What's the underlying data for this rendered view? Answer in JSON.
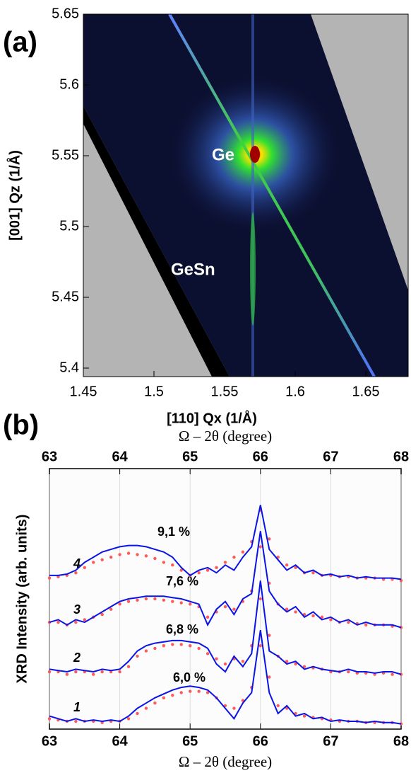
{
  "chart_data": [
    {
      "type": "map",
      "label": "(a)",
      "xlabel": "[110] Qx (1/Å)",
      "ylabel": "[001] Qz (1/Å)",
      "xlim": [
        1.45,
        1.68
      ],
      "ylim": [
        5.394,
        5.65
      ],
      "xticks": [
        1.45,
        1.5,
        1.55,
        1.6,
        1.65
      ],
      "yticks": [
        5.4,
        5.45,
        5.5,
        5.55,
        5.6,
        5.65
      ],
      "annotations": [
        "Ge",
        "GeSn"
      ]
    },
    {
      "type": "line",
      "label": "(b)",
      "xlabel": "Ω – 2θ (degree)",
      "x2label": "Ω – 2θ (degree)",
      "ylabel": "XRD Intensity (arb. units)",
      "xlim": [
        63,
        68
      ],
      "ylim": [
        0,
        10
      ],
      "xticks": [
        63,
        64,
        65,
        66,
        67,
        68
      ],
      "grid": true,
      "x": [
        63,
        63.125,
        63.25,
        63.375,
        63.5,
        63.625,
        63.75,
        63.875,
        64,
        64.125,
        64.25,
        64.375,
        64.5,
        64.625,
        64.75,
        64.875,
        65,
        65.125,
        65.25,
        65.375,
        65.5,
        65.625,
        65.75,
        65.875,
        66,
        66.125,
        66.25,
        66.375,
        66.5,
        66.625,
        66.75,
        66.875,
        67,
        67.125,
        67.25,
        67.375,
        67.5,
        67.625,
        67.75,
        67.875,
        68
      ],
      "series": [
        {
          "name": "1",
          "annotation": "6,0 %",
          "color": "#0a14e6",
          "measured_color": "#ff5a5a",
          "values": [
            0.5,
            0.4,
            0.3,
            0.4,
            0.3,
            0.35,
            0.3,
            0.35,
            0.3,
            0.5,
            0.8,
            1.0,
            1.2,
            1.35,
            1.5,
            1.6,
            1.65,
            1.6,
            1.5,
            1.2,
            0.8,
            0.4,
            1.0,
            1.4,
            3.8,
            1.4,
            0.6,
            0.9,
            0.5,
            0.6,
            0.4,
            0.45,
            0.3,
            0.35,
            0.3,
            0.3,
            0.25,
            0.3,
            0.25,
            0.25,
            0.2
          ],
          "measured": [
            0.4,
            0.35,
            0.3,
            0.3,
            0.3,
            0.3,
            0.25,
            0.3,
            0.3,
            0.4,
            0.6,
            0.8,
            1.0,
            1.2,
            1.3,
            1.4,
            1.45,
            1.45,
            1.4,
            1.2,
            0.9,
            0.8,
            1.1,
            1.6,
            3.2,
            2.0,
            0.9,
            0.8,
            0.6,
            0.5,
            0.45,
            0.4,
            0.35,
            0.3,
            0.3,
            0.3,
            0.25,
            0.25,
            0.25,
            0.25,
            0.2
          ]
        },
        {
          "name": "2",
          "annotation": "6,8 %",
          "color": "#0a14e6",
          "measured_color": "#ff5a5a",
          "values": [
            2.3,
            2.25,
            2.2,
            2.3,
            2.25,
            2.2,
            2.3,
            2.25,
            2.3,
            2.6,
            3.0,
            3.2,
            3.3,
            3.35,
            3.4,
            3.4,
            3.35,
            3.3,
            3.1,
            2.5,
            2.2,
            2.8,
            2.4,
            2.9,
            5.7,
            3.0,
            2.8,
            2.5,
            2.6,
            2.3,
            2.4,
            2.3,
            2.25,
            2.2,
            2.3,
            2.2,
            2.2,
            2.15,
            2.2,
            2.2,
            2.1
          ],
          "measured": [
            2.2,
            2.2,
            2.1,
            2.2,
            2.2,
            2.1,
            2.2,
            2.2,
            2.2,
            2.4,
            2.8,
            3.0,
            3.1,
            3.2,
            3.25,
            3.25,
            3.2,
            3.1,
            2.9,
            2.7,
            2.5,
            2.7,
            2.6,
            3.2,
            5.0,
            3.6,
            2.8,
            2.6,
            2.5,
            2.4,
            2.35,
            2.3,
            2.2,
            2.2,
            2.2,
            2.15,
            2.15,
            2.1,
            2.15,
            2.1,
            2.1
          ]
        },
        {
          "name": "3",
          "annotation": "7,6 %",
          "color": "#0a14e6",
          "measured_color": "#ff5a5a",
          "values": [
            4.1,
            4.2,
            4.0,
            4.2,
            4.1,
            4.3,
            4.5,
            4.7,
            4.9,
            5.0,
            5.05,
            5.1,
            5.1,
            5.1,
            5.05,
            5.0,
            4.9,
            4.8,
            4.0,
            4.6,
            4.9,
            4.4,
            5.0,
            5.2,
            7.6,
            5.3,
            4.8,
            4.5,
            4.7,
            4.3,
            4.5,
            4.2,
            4.3,
            4.1,
            4.2,
            4.0,
            4.1,
            4.0,
            4.0,
            4.0,
            3.9
          ],
          "measured": [
            4.1,
            4.1,
            4.0,
            4.1,
            4.2,
            4.3,
            4.4,
            4.6,
            4.8,
            4.9,
            4.95,
            5.0,
            5.0,
            4.95,
            4.9,
            4.85,
            4.8,
            4.7,
            4.3,
            4.5,
            4.7,
            4.6,
            4.9,
            5.3,
            7.0,
            5.6,
            4.8,
            4.6,
            4.5,
            4.4,
            4.35,
            4.3,
            4.2,
            4.1,
            4.1,
            4.05,
            4.0,
            4.0,
            4.0,
            3.95,
            3.9
          ]
        },
        {
          "name": "4",
          "annotation": "9,1 %",
          "color": "#0a14e6",
          "measured_color": "#ff5a5a",
          "values": [
            5.9,
            5.9,
            5.95,
            6.1,
            6.4,
            6.6,
            6.8,
            6.9,
            7.0,
            7.05,
            7.05,
            7.0,
            6.9,
            6.8,
            6.6,
            6.2,
            5.9,
            6.1,
            6.2,
            6.0,
            6.3,
            6.1,
            6.6,
            7.0,
            8.6,
            6.9,
            6.5,
            6.1,
            6.3,
            6.0,
            6.1,
            5.9,
            5.95,
            5.85,
            5.9,
            5.8,
            5.85,
            5.8,
            5.8,
            5.8,
            5.75
          ],
          "measured": [
            5.8,
            5.85,
            5.9,
            6.0,
            6.2,
            6.4,
            6.5,
            6.6,
            6.7,
            6.75,
            6.7,
            6.65,
            6.55,
            6.4,
            6.3,
            6.1,
            5.9,
            6.0,
            6.1,
            6.2,
            6.4,
            6.6,
            6.8,
            7.2,
            8.4,
            7.3,
            6.6,
            6.3,
            6.2,
            6.0,
            6.0,
            5.9,
            5.9,
            5.85,
            5.85,
            5.8,
            5.8,
            5.8,
            5.75,
            5.75,
            5.7
          ]
        }
      ]
    }
  ]
}
